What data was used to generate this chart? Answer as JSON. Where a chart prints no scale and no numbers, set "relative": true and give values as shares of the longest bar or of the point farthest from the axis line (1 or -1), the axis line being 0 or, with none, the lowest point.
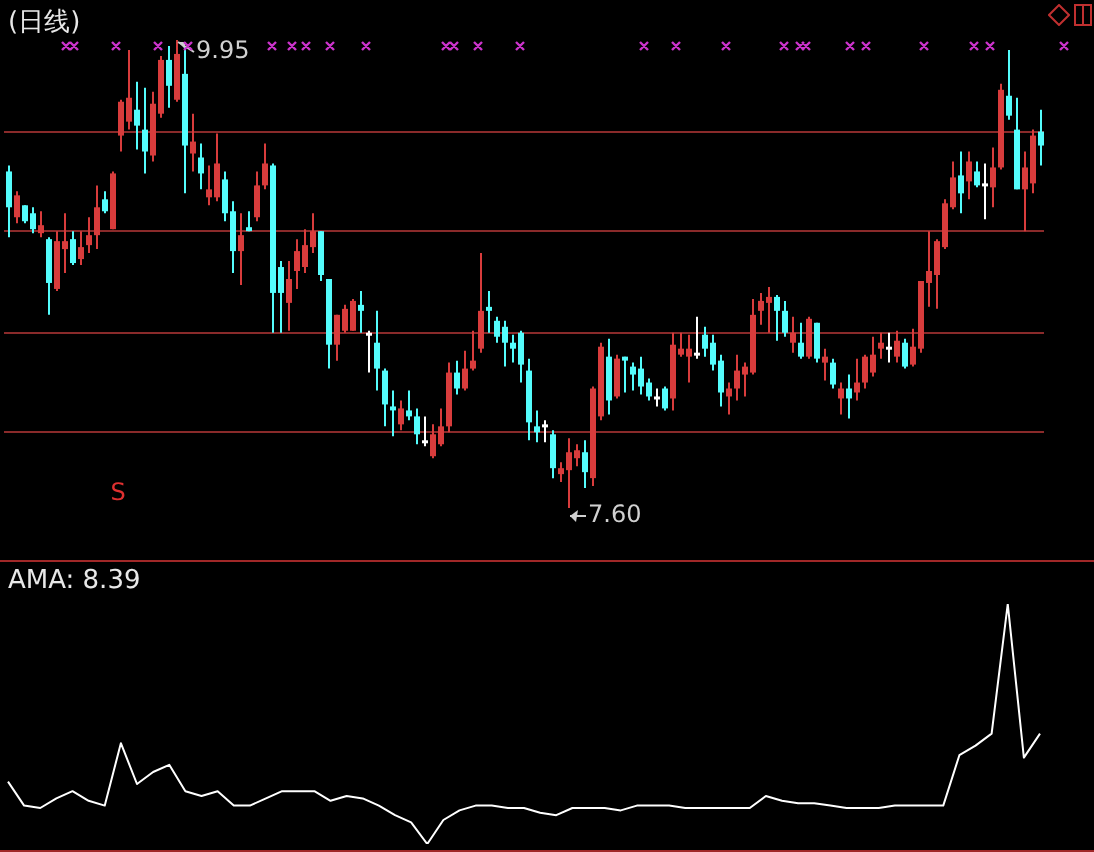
{
  "chart_data": [
    {
      "type": "candlestick",
      "title": "(日线)",
      "categories": [
        null,
        null,
        null,
        null,
        null,
        null,
        null,
        null,
        null,
        null,
        null,
        null,
        null,
        null,
        null,
        null,
        null,
        null,
        null,
        null,
        null,
        null,
        null,
        null,
        null,
        null,
        null,
        null,
        null,
        null,
        null,
        null,
        null,
        null,
        null,
        null,
        null,
        null,
        null,
        null,
        null,
        null,
        null,
        null,
        null,
        null,
        null,
        null,
        null,
        null,
        null,
        null,
        null,
        null,
        null,
        null,
        null,
        null,
        null,
        null,
        null,
        null,
        null,
        null,
        null,
        null,
        null,
        null,
        null,
        null,
        null,
        null,
        null,
        null,
        null,
        null,
        null,
        null,
        null,
        null,
        null,
        null,
        null,
        null,
        null,
        null,
        null,
        null,
        null,
        null,
        null,
        null,
        null,
        null,
        null,
        null,
        null,
        null,
        null,
        null,
        null,
        null,
        null,
        null,
        null,
        null,
        null,
        null,
        null,
        null,
        null,
        null,
        null,
        null,
        null,
        null,
        null,
        null,
        null,
        null,
        null,
        null,
        null,
        null,
        null,
        null,
        null,
        null,
        null,
        null
      ],
      "ohlc": [
        [
          9.29,
          9.32,
          8.96,
          9.11
        ],
        [
          9.06,
          9.19,
          9.03,
          9.17
        ],
        [
          9.12,
          9.12,
          9.03,
          9.04
        ],
        [
          9.08,
          9.11,
          8.98,
          9.0
        ],
        [
          8.98,
          9.09,
          8.96,
          9.02
        ],
        [
          8.95,
          8.96,
          8.57,
          8.73
        ],
        [
          8.7,
          8.99,
          8.69,
          8.94
        ],
        [
          8.9,
          9.08,
          8.78,
          8.94
        ],
        [
          8.95,
          8.99,
          8.82,
          8.83
        ],
        [
          8.85,
          8.99,
          8.82,
          8.91
        ],
        [
          8.92,
          9.06,
          8.88,
          8.97
        ],
        [
          8.97,
          9.22,
          8.9,
          9.11
        ],
        [
          9.15,
          9.19,
          9.08,
          9.09
        ],
        [
          9.0,
          9.29,
          9.0,
          9.28
        ],
        [
          9.47,
          9.65,
          9.39,
          9.64
        ],
        [
          9.54,
          9.9,
          9.5,
          9.66
        ],
        [
          9.6,
          9.74,
          9.4,
          9.52
        ],
        [
          9.5,
          9.71,
          9.28,
          9.39
        ],
        [
          9.37,
          9.69,
          9.34,
          9.63
        ],
        [
          9.58,
          9.87,
          9.56,
          9.85
        ],
        [
          9.85,
          9.92,
          9.61,
          9.72
        ],
        [
          9.65,
          9.95,
          9.64,
          9.88
        ],
        [
          9.78,
          9.92,
          9.18,
          9.42
        ],
        [
          9.38,
          9.58,
          9.29,
          9.44
        ],
        [
          9.36,
          9.43,
          9.2,
          9.28
        ],
        [
          9.16,
          9.32,
          9.12,
          9.2
        ],
        [
          9.16,
          9.48,
          9.14,
          9.33
        ],
        [
          9.25,
          9.29,
          9.04,
          9.08
        ],
        [
          9.09,
          9.14,
          8.78,
          8.89
        ],
        [
          8.89,
          9.08,
          8.72,
          8.97
        ],
        [
          9.01,
          9.09,
          8.99,
          8.99
        ],
        [
          9.06,
          9.29,
          9.04,
          9.22
        ],
        [
          9.22,
          9.43,
          9.2,
          9.33
        ],
        [
          9.32,
          9.33,
          8.48,
          8.68
        ],
        [
          8.81,
          8.84,
          8.48,
          8.68
        ],
        [
          8.63,
          8.84,
          8.49,
          8.75
        ],
        [
          8.79,
          8.95,
          8.7,
          8.89
        ],
        [
          8.81,
          9.0,
          8.78,
          8.92
        ],
        [
          8.91,
          9.08,
          8.88,
          8.99
        ],
        [
          8.99,
          8.99,
          8.74,
          8.77
        ],
        [
          8.75,
          8.75,
          8.3,
          8.42
        ],
        [
          8.42,
          8.57,
          8.34,
          8.57
        ],
        [
          8.49,
          8.62,
          8.48,
          8.6
        ],
        [
          8.49,
          8.65,
          8.49,
          8.64
        ],
        [
          8.62,
          8.69,
          8.48,
          8.59
        ],
        [
          8.48,
          8.49,
          8.28,
          8.47
        ],
        [
          8.43,
          8.59,
          8.19,
          8.3
        ],
        [
          8.29,
          8.3,
          8.01,
          8.12
        ],
        [
          8.11,
          8.19,
          7.96,
          8.09
        ],
        [
          8.02,
          8.14,
          7.99,
          8.1
        ],
        [
          8.09,
          8.19,
          8.04,
          8.06
        ],
        [
          8.06,
          8.1,
          7.92,
          7.97
        ],
        [
          7.94,
          8.06,
          7.91,
          7.93
        ],
        [
          7.86,
          8.02,
          7.85,
          7.97
        ],
        [
          7.92,
          8.1,
          7.91,
          8.01
        ],
        [
          8.01,
          8.33,
          7.98,
          8.28
        ],
        [
          8.28,
          8.34,
          8.17,
          8.2
        ],
        [
          8.2,
          8.39,
          8.19,
          8.3
        ],
        [
          8.3,
          8.49,
          8.29,
          8.34
        ],
        [
          8.4,
          8.88,
          8.38,
          8.59
        ],
        [
          8.61,
          8.69,
          8.48,
          8.59
        ],
        [
          8.54,
          8.56,
          8.43,
          8.46
        ],
        [
          8.51,
          8.54,
          8.31,
          8.43
        ],
        [
          8.43,
          8.47,
          8.33,
          8.4
        ],
        [
          8.48,
          8.49,
          8.23,
          8.32
        ],
        [
          8.29,
          8.35,
          7.94,
          8.03
        ],
        [
          8.01,
          8.09,
          7.93,
          7.98
        ],
        [
          8.02,
          8.04,
          7.93,
          8.01
        ],
        [
          7.97,
          7.99,
          7.75,
          7.8
        ],
        [
          7.77,
          7.83,
          7.73,
          7.8
        ],
        [
          7.79,
          7.95,
          7.6,
          7.88
        ],
        [
          7.85,
          7.92,
          7.81,
          7.89
        ],
        [
          7.88,
          7.94,
          7.7,
          7.78
        ],
        [
          7.75,
          8.21,
          7.71,
          8.2
        ],
        [
          8.06,
          8.43,
          8.04,
          8.41
        ],
        [
          8.36,
          8.45,
          8.07,
          8.14
        ],
        [
          8.16,
          8.37,
          8.15,
          8.35
        ],
        [
          8.36,
          8.36,
          8.18,
          8.34
        ],
        [
          8.31,
          8.33,
          8.19,
          8.27
        ],
        [
          8.3,
          8.36,
          8.17,
          8.21
        ],
        [
          8.23,
          8.25,
          8.14,
          8.16
        ],
        [
          8.16,
          8.2,
          8.11,
          8.15
        ],
        [
          8.2,
          8.21,
          8.09,
          8.1
        ],
        [
          8.15,
          8.48,
          8.09,
          8.42
        ],
        [
          8.37,
          8.48,
          8.36,
          8.4
        ],
        [
          8.36,
          8.47,
          8.23,
          8.4
        ],
        [
          8.38,
          8.56,
          8.35,
          8.37
        ],
        [
          8.47,
          8.51,
          8.36,
          8.4
        ],
        [
          8.43,
          8.47,
          8.29,
          8.32
        ],
        [
          8.34,
          8.37,
          8.11,
          8.18
        ],
        [
          8.16,
          8.23,
          8.07,
          8.2
        ],
        [
          8.2,
          8.37,
          8.14,
          8.29
        ],
        [
          8.27,
          8.33,
          8.16,
          8.31
        ],
        [
          8.28,
          8.65,
          8.27,
          8.57
        ],
        [
          8.59,
          8.68,
          8.52,
          8.64
        ],
        [
          8.63,
          8.71,
          8.48,
          8.66
        ],
        [
          8.66,
          8.67,
          8.44,
          8.59
        ],
        [
          8.59,
          8.64,
          8.46,
          8.48
        ],
        [
          8.43,
          8.56,
          8.38,
          8.48
        ],
        [
          8.43,
          8.53,
          8.35,
          8.36
        ],
        [
          8.36,
          8.56,
          8.35,
          8.55
        ],
        [
          8.53,
          8.53,
          8.33,
          8.35
        ],
        [
          8.33,
          8.4,
          8.24,
          8.36
        ],
        [
          8.33,
          8.35,
          8.2,
          8.22
        ],
        [
          8.15,
          8.23,
          8.07,
          8.2
        ],
        [
          8.2,
          8.27,
          8.05,
          8.15
        ],
        [
          8.18,
          8.35,
          8.14,
          8.23
        ],
        [
          8.23,
          8.37,
          8.2,
          8.36
        ],
        [
          8.28,
          8.46,
          8.26,
          8.37
        ],
        [
          8.4,
          8.48,
          8.35,
          8.43
        ],
        [
          8.41,
          8.48,
          8.33,
          8.4
        ],
        [
          8.36,
          8.49,
          8.33,
          8.44
        ],
        [
          8.43,
          8.45,
          8.3,
          8.31
        ],
        [
          8.32,
          8.5,
          8.31,
          8.41
        ],
        [
          8.4,
          8.74,
          8.38,
          8.74
        ],
        [
          8.73,
          8.99,
          8.61,
          8.79
        ],
        [
          8.77,
          8.95,
          8.6,
          8.94
        ],
        [
          8.91,
          9.15,
          8.9,
          9.13
        ],
        [
          9.11,
          9.34,
          9.1,
          9.26
        ],
        [
          9.27,
          9.39,
          9.08,
          9.18
        ],
        [
          9.24,
          9.39,
          9.15,
          9.34
        ],
        [
          9.29,
          9.34,
          9.21,
          9.22
        ],
        [
          9.23,
          9.33,
          9.05,
          9.22
        ],
        [
          9.21,
          9.41,
          9.11,
          9.31
        ],
        [
          9.31,
          9.73,
          9.3,
          9.7
        ],
        [
          9.67,
          9.9,
          9.55,
          9.57
        ],
        [
          9.5,
          9.66,
          9.2,
          9.2
        ],
        [
          9.2,
          9.39,
          8.99,
          9.31
        ],
        [
          9.23,
          9.5,
          9.18,
          9.47
        ],
        [
          9.49,
          9.6,
          9.32,
          9.42
        ]
      ],
      "colors": [
        "#54fcfc",
        "#d83c3c",
        "#54fcfc",
        "#54fcfc",
        "#d83c3c",
        "#54fcfc",
        "#d83c3c",
        "#d83c3c",
        "#54fcfc",
        "#d83c3c",
        "#d83c3c",
        "#d83c3c",
        "#54fcfc",
        "#d83c3c",
        "#d83c3c",
        "#d83c3c",
        "#54fcfc",
        "#54fcfc",
        "#d83c3c",
        "#d83c3c",
        "#54fcfc",
        "#d83c3c",
        "#54fcfc",
        "#d83c3c",
        "#54fcfc",
        "#d83c3c",
        "#d83c3c",
        "#54fcfc",
        "#54fcfc",
        "#d83c3c",
        "#54fcfc",
        "#d83c3c",
        "#d83c3c",
        "#54fcfc",
        "#54fcfc",
        "#d83c3c",
        "#d83c3c",
        "#d83c3c",
        "#d83c3c",
        "#54fcfc",
        "#54fcfc",
        "#d83c3c",
        "#d83c3c",
        "#d83c3c",
        "#54fcfc",
        "#ffffff",
        "#54fcfc",
        "#54fcfc",
        "#54fcfc",
        "#d83c3c",
        "#54fcfc",
        "#54fcfc",
        "#ffffff",
        "#d83c3c",
        "#d83c3c",
        "#d83c3c",
        "#54fcfc",
        "#d83c3c",
        "#d83c3c",
        "#d83c3c",
        "#54fcfc",
        "#54fcfc",
        "#54fcfc",
        "#54fcfc",
        "#54fcfc",
        "#54fcfc",
        "#54fcfc",
        "#ffffff",
        "#54fcfc",
        "#d83c3c",
        "#d83c3c",
        "#d83c3c",
        "#54fcfc",
        "#d83c3c",
        "#d83c3c",
        "#54fcfc",
        "#d83c3c",
        "#54fcfc",
        "#54fcfc",
        "#54fcfc",
        "#54fcfc",
        "#ffffff",
        "#54fcfc",
        "#d83c3c",
        "#d83c3c",
        "#d83c3c",
        "#ffffff",
        "#54fcfc",
        "#54fcfc",
        "#54fcfc",
        "#d83c3c",
        "#d83c3c",
        "#d83c3c",
        "#d83c3c",
        "#d83c3c",
        "#d83c3c",
        "#54fcfc",
        "#54fcfc",
        "#d83c3c",
        "#54fcfc",
        "#d83c3c",
        "#54fcfc",
        "#d83c3c",
        "#54fcfc",
        "#d83c3c",
        "#54fcfc",
        "#d83c3c",
        "#d83c3c",
        "#d83c3c",
        "#d83c3c",
        "#ffffff",
        "#d83c3c",
        "#54fcfc",
        "#d83c3c",
        "#d83c3c",
        "#d83c3c",
        "#d83c3c",
        "#d83c3c",
        "#d83c3c",
        "#54fcfc",
        "#d83c3c",
        "#54fcfc",
        "#ffffff",
        "#d83c3c",
        "#d83c3c",
        "#54fcfc",
        "#54fcfc",
        "#d83c3c",
        "#d83c3c",
        "#54fcfc"
      ],
      "yticks": [
        {
          "value": 7.98,
          "label": null
        },
        {
          "value": 8.48,
          "label": null
        },
        {
          "value": 8.99,
          "label": null
        },
        {
          "value": 9.49,
          "label": null
        }
      ],
      "grid": "y",
      "tick_labels": false,
      "legend": false,
      "annotations": [
        "9.95",
        "7.60",
        "S"
      ]
    },
    {
      "type": "line",
      "title": "AMA: 8.39",
      "color": "#ffffff",
      "relative": true,
      "tick_labels": false,
      "legend": false,
      "categories": [
        null,
        null,
        null,
        null,
        null,
        null,
        null,
        null,
        null,
        null,
        null,
        null,
        null,
        null,
        null,
        null,
        null,
        null,
        null,
        null,
        null,
        null,
        null,
        null,
        null,
        null,
        null,
        null,
        null,
        null,
        null,
        null,
        null,
        null,
        null,
        null,
        null,
        null,
        null,
        null,
        null,
        null,
        null,
        null,
        null,
        null,
        null,
        null,
        null,
        null,
        null,
        null,
        null,
        null,
        null,
        null,
        null,
        null,
        null,
        null,
        null,
        null,
        null,
        null,
        null
      ],
      "values": [
        0.26,
        0.16,
        0.15,
        0.19,
        0.22,
        0.18,
        0.16,
        0.42,
        0.25,
        0.3,
        0.33,
        0.22,
        0.2,
        0.22,
        0.16,
        0.16,
        0.19,
        0.22,
        0.22,
        0.22,
        0.18,
        0.2,
        0.19,
        0.16,
        0.12,
        0.09,
        0,
        0.1,
        0.14,
        0.16,
        0.16,
        0.15,
        0.15,
        0.13,
        0.12,
        0.15,
        0.15,
        0.15,
        0.14,
        0.16,
        0.16,
        0.16,
        0.15,
        0.15,
        0.15,
        0.15,
        0.15,
        0.2,
        0.18,
        0.17,
        0.17,
        0.16,
        0.15,
        0.15,
        0.15,
        0.16,
        0.16,
        0.16,
        0.16,
        0.37,
        0.41,
        0.46,
        1,
        0.36,
        0.46
      ]
    }
  ]
}
